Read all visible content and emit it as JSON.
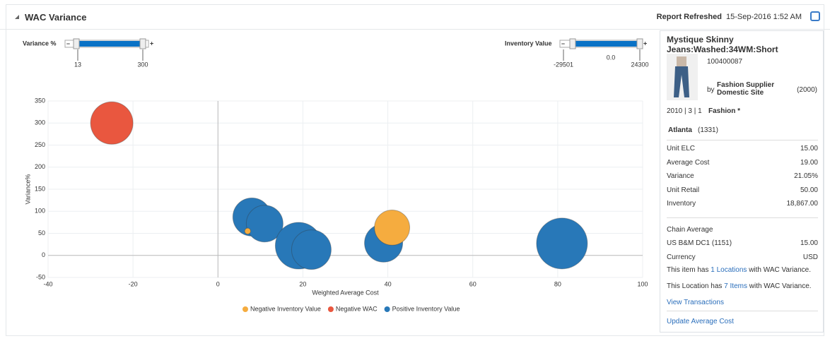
{
  "header": {
    "title": "WAC Variance",
    "refreshed_label": "Report Refreshed",
    "refreshed_time": "15-Sep-2016 1:52 AM"
  },
  "filters": {
    "variance": {
      "label": "Variance %",
      "min": "13",
      "max": "300"
    },
    "inventory": {
      "label": "Inventory Value",
      "min": "-29501",
      "mid": "0.0",
      "max": "24300"
    }
  },
  "chart_data": {
    "type": "bubble",
    "x_label": "Weighted Average Cost",
    "y_label": "Variance%",
    "xlim": [
      -40,
      100
    ],
    "xticks": [
      -40,
      -20,
      0,
      20,
      40,
      60,
      80,
      100
    ],
    "ylim": [
      -50,
      350
    ],
    "yticks": [
      -50,
      0,
      50,
      100,
      150,
      200,
      250,
      300,
      350
    ],
    "grid": true,
    "series": [
      {
        "name": "Negative Inventory Value",
        "color": "#f5ac3f",
        "x": [
          7,
          41
        ],
        "values": [
          55,
          63
        ],
        "sizes": [
          2,
          69
        ]
      },
      {
        "name": "Negative WAC",
        "color": "#e9573f",
        "x": [
          -25
        ],
        "values": [
          300
        ],
        "sizes": [
          100
        ]
      },
      {
        "name": "Positive Inventory Value",
        "color": "#2878b8",
        "x": [
          8,
          11,
          19,
          22,
          39,
          81
        ],
        "values": [
          87,
          72,
          22,
          13,
          28,
          27
        ],
        "sizes": [
          81,
          75,
          121,
          87,
          81,
          144
        ]
      }
    ]
  },
  "detail": {
    "title": "Mystique Skinny Jeans:Washed:34WM:Short",
    "item_id": "100400087",
    "by": "by",
    "supplier": "Fashion Supplier Domestic Site",
    "supplier_id": "(2000)",
    "hierarchy": "2010 | 3 | 1",
    "division": "Fashion *",
    "location": "Atlanta",
    "location_id": "(1331)",
    "rows": [
      [
        "Unit ELC",
        "15.00"
      ],
      [
        "Average Cost",
        "19.00"
      ],
      [
        "Variance",
        "21.05%"
      ],
      [
        "Unit Retail",
        "50.00"
      ],
      [
        "Inventory",
        "18,867.00"
      ]
    ],
    "chain_label": "Chain Average",
    "chain_rows": [
      [
        "US B&M DC1 (1151)",
        "15.00"
      ],
      [
        "Currency",
        "USD"
      ]
    ],
    "msg1": [
      "This item has",
      "1 Locations",
      "with WAC Variance."
    ],
    "msg2": [
      "This Location has",
      "7 Items",
      "with WAC Variance."
    ],
    "links": [
      "View Transactions",
      "Update Average Cost"
    ]
  }
}
